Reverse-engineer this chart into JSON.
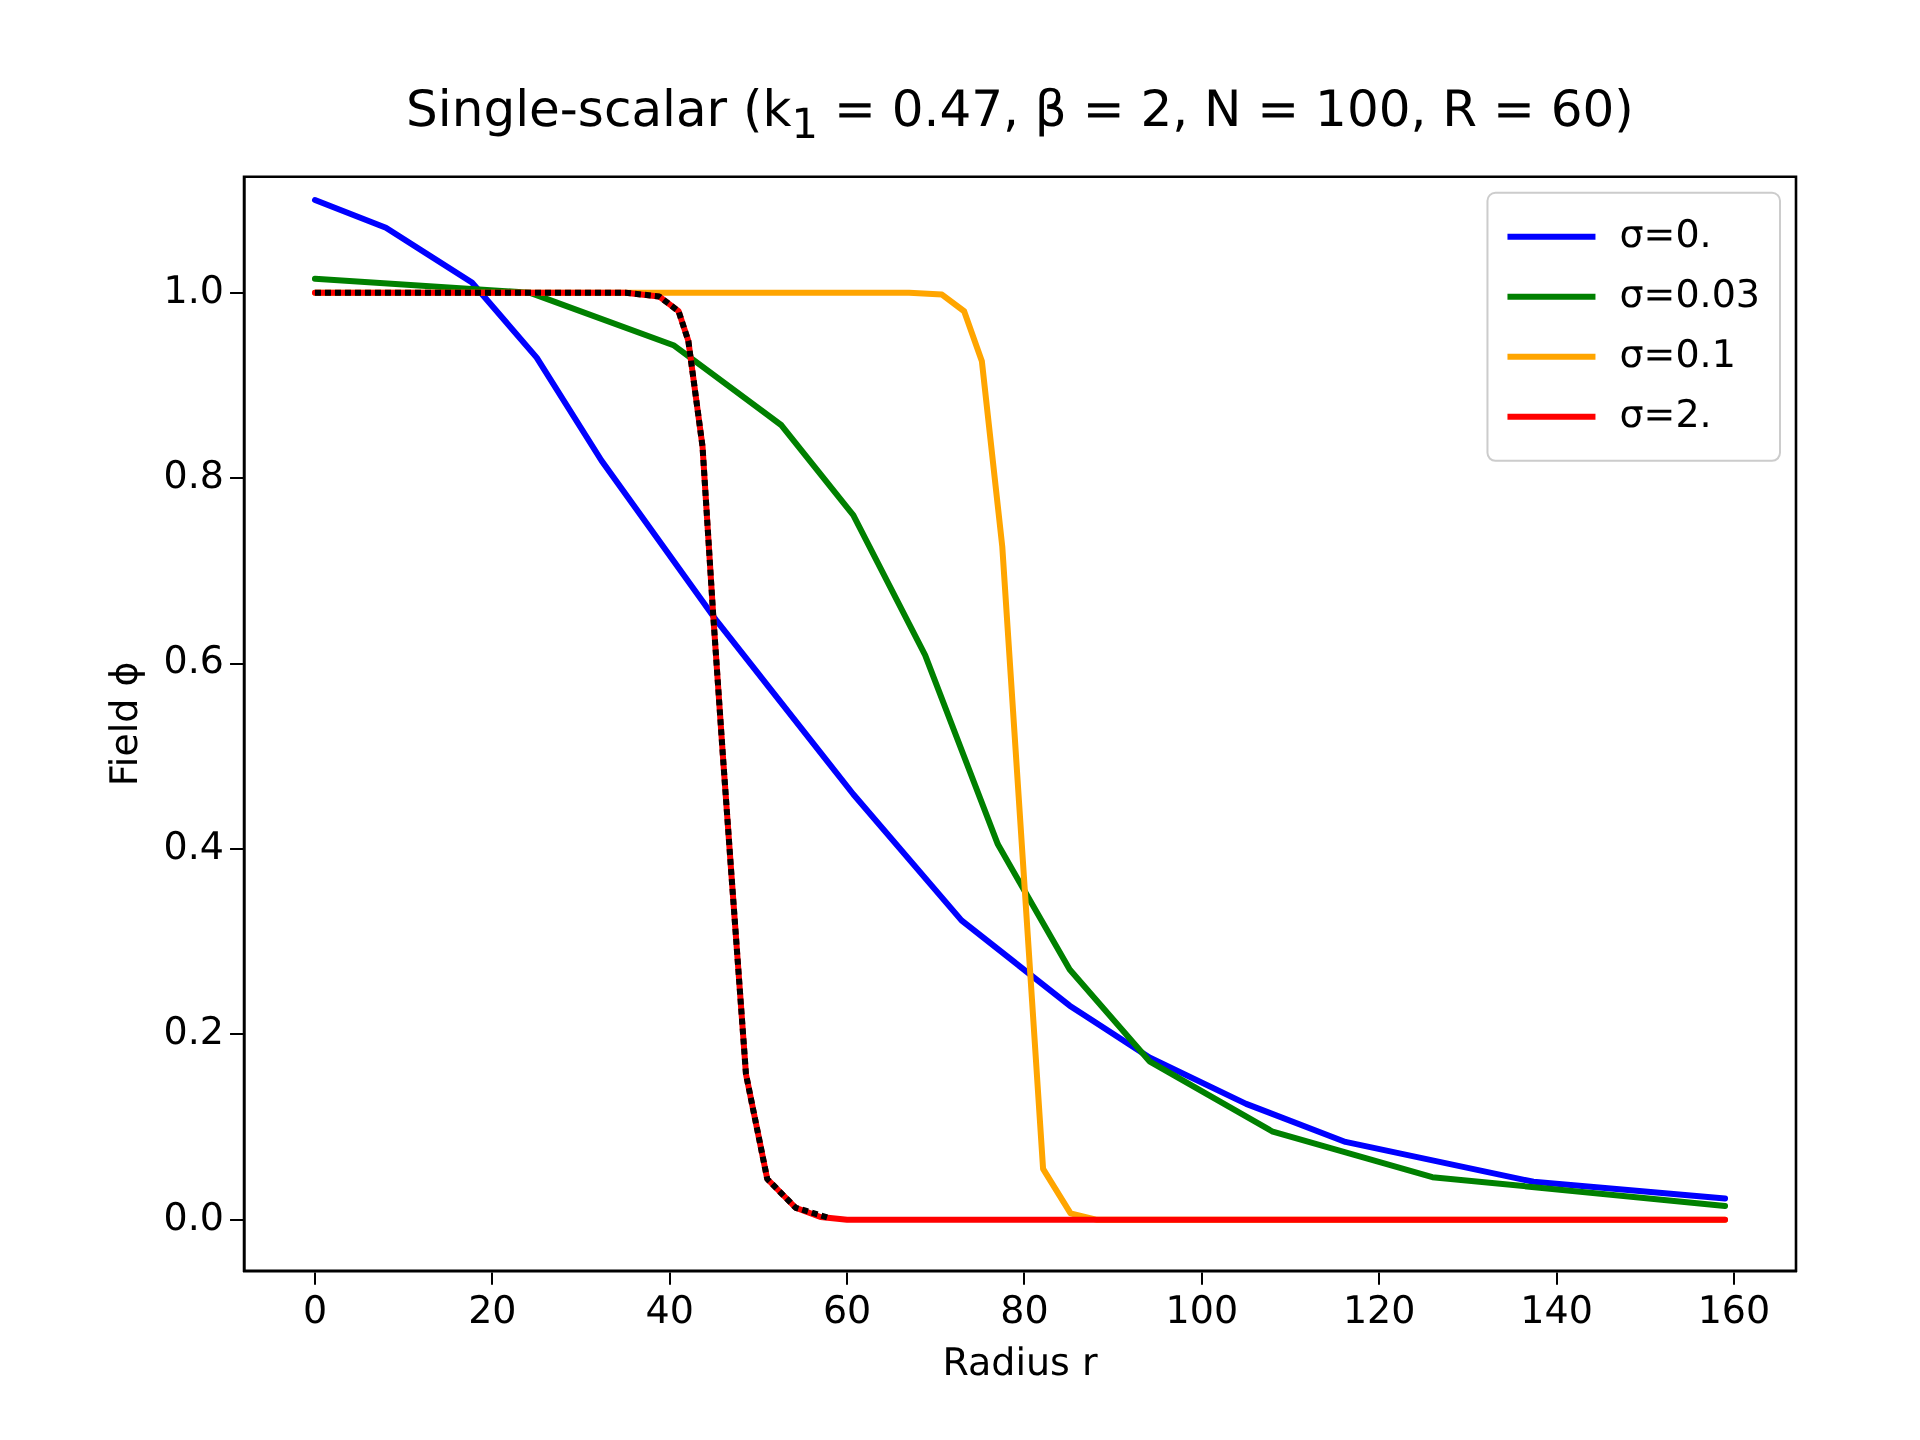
{
  "chart_data": {
    "type": "line",
    "title": "Single-scalar (k$_{1}$ = 0.47,  β = 2,  N = 100,  R = 60)",
    "xlabel": "Radius r",
    "ylabel": "Field ϕ",
    "xlim": [
      -8,
      167
    ],
    "xticks": [
      0,
      20,
      40,
      60,
      80,
      100,
      120,
      140,
      160
    ],
    "ylim": [
      -0.055,
      1.125
    ],
    "yticks": [
      {
        "value": 0,
        "label": "0.0"
      },
      0.2,
      0.4,
      0.6,
      0.8,
      {
        "value": 1,
        "label": "1.0"
      }
    ],
    "grid": false,
    "legend": "top right",
    "marker": "none",
    "series": [
      {
        "name": "σ=0.",
        "color": "#0000ff",
        "x": [
          0,
          8,
          17.7,
          25,
          32.3,
          45.3,
          60.7,
          72.9,
          85.1,
          94.1,
          105,
          116.2,
          137.4,
          159
        ],
        "values": [
          1.1,
          1.07,
          1.011,
          0.93,
          0.819,
          0.646,
          0.459,
          0.323,
          0.231,
          0.175,
          0.125,
          0.084,
          0.041,
          0.023
        ]
      },
      {
        "name": "σ=0.03",
        "color": "#008000",
        "x": [
          0,
          24.2,
          40.5,
          52.6,
          60.7,
          68.8,
          77,
          85.1,
          94.1,
          108,
          126,
          159
        ],
        "values": [
          1.015,
          1.0,
          0.943,
          0.857,
          0.76,
          0.609,
          0.405,
          0.27,
          0.171,
          0.095,
          0.046,
          0.015
        ]
      },
      {
        "name": "σ=0.1",
        "color": "#ffa500",
        "x": [
          0,
          67,
          70.7,
          73.2,
          75.2,
          77.5,
          82.1,
          85.2,
          88.2,
          159
        ],
        "values": [
          1.0,
          1.0,
          0.998,
          0.98,
          0.926,
          0.726,
          0.055,
          0.007,
          0.0,
          0.0
        ]
      },
      {
        "name": "σ=2.",
        "color": "#ff0000",
        "x": [
          0,
          35,
          38.8,
          41,
          42.1,
          43.7,
          44.9,
          46,
          46.9,
          48.6,
          51,
          54.2,
          57,
          60,
          159
        ],
        "values": [
          1.0,
          1.0,
          0.996,
          0.98,
          0.948,
          0.834,
          0.653,
          0.5,
          0.38,
          0.157,
          0.044,
          0.013,
          0.003,
          0.0,
          0.0
        ]
      },
      {
        "color": "#000000",
        "line_style": "dotted",
        "x": [
          0,
          35,
          38.8,
          41,
          42.1,
          43.7,
          44.9,
          46,
          46.9,
          48.6,
          51,
          54.2,
          58
        ],
        "values": [
          1.0,
          1.0,
          0.996,
          0.98,
          0.948,
          0.834,
          0.653,
          0.5,
          0.38,
          0.157,
          0.044,
          0.013,
          0.002
        ]
      }
    ]
  }
}
